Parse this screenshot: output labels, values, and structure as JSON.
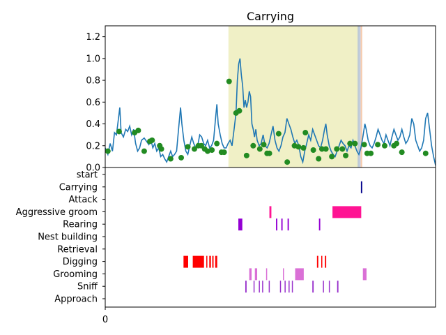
{
  "chart_data": [
    {
      "type": "line",
      "title": "Carrying",
      "xlabel": "",
      "ylabel": "",
      "ylim": [
        0,
        1.3
      ],
      "yticks": [
        "0.0",
        "0.2",
        "0.4",
        "0.6",
        "0.8",
        "1.0",
        "1.2"
      ],
      "x_range": [
        0,
        1000
      ],
      "series": [
        {
          "color": "#1f77b4",
          "points": [
            [
              0,
              0.18
            ],
            [
              8,
              0.12
            ],
            [
              15,
              0.22
            ],
            [
              22,
              0.15
            ],
            [
              28,
              0.32
            ],
            [
              34,
              0.3
            ],
            [
              40,
              0.45
            ],
            [
              44,
              0.55
            ],
            [
              48,
              0.32
            ],
            [
              55,
              0.28
            ],
            [
              62,
              0.35
            ],
            [
              68,
              0.33
            ],
            [
              74,
              0.38
            ],
            [
              80,
              0.3
            ],
            [
              86,
              0.35
            ],
            [
              92,
              0.22
            ],
            [
              98,
              0.15
            ],
            [
              104,
              0.18
            ],
            [
              110,
              0.25
            ],
            [
              118,
              0.27
            ],
            [
              125,
              0.24
            ],
            [
              132,
              0.21
            ],
            [
              138,
              0.26
            ],
            [
              144,
              0.18
            ],
            [
              150,
              0.22
            ],
            [
              156,
              0.15
            ],
            [
              162,
              0.18
            ],
            [
              168,
              0.1
            ],
            [
              174,
              0.12
            ],
            [
              180,
              0.08
            ],
            [
              186,
              0.05
            ],
            [
              192,
              0.1
            ],
            [
              198,
              0.15
            ],
            [
              204,
              0.1
            ],
            [
              210,
              0.12
            ],
            [
              216,
              0.15
            ],
            [
              222,
              0.35
            ],
            [
              228,
              0.55
            ],
            [
              232,
              0.4
            ],
            [
              238,
              0.25
            ],
            [
              244,
              0.15
            ],
            [
              250,
              0.12
            ],
            [
              256,
              0.2
            ],
            [
              262,
              0.28
            ],
            [
              268,
              0.22
            ],
            [
              274,
              0.18
            ],
            [
              280,
              0.2
            ],
            [
              286,
              0.3
            ],
            [
              292,
              0.28
            ],
            [
              298,
              0.22
            ],
            [
              304,
              0.2
            ],
            [
              310,
              0.25
            ],
            [
              316,
              0.18
            ],
            [
              322,
              0.2
            ],
            [
              328,
              0.25
            ],
            [
              334,
              0.45
            ],
            [
              338,
              0.58
            ],
            [
              342,
              0.4
            ],
            [
              348,
              0.3
            ],
            [
              354,
              0.22
            ],
            [
              360,
              0.18
            ],
            [
              366,
              0.18
            ],
            [
              372,
              0.22
            ],
            [
              378,
              0.25
            ],
            [
              384,
              0.2
            ],
            [
              390,
              0.35
            ],
            [
              396,
              0.5
            ],
            [
              400,
              0.8
            ],
            [
              404,
              0.95
            ],
            [
              408,
              1.0
            ],
            [
              412,
              0.85
            ],
            [
              416,
              0.75
            ],
            [
              420,
              0.55
            ],
            [
              424,
              0.62
            ],
            [
              428,
              0.55
            ],
            [
              432,
              0.6
            ],
            [
              436,
              0.7
            ],
            [
              440,
              0.65
            ],
            [
              444,
              0.4
            ],
            [
              448,
              0.35
            ],
            [
              452,
              0.28
            ],
            [
              456,
              0.35
            ],
            [
              460,
              0.25
            ],
            [
              466,
              0.2
            ],
            [
              472,
              0.22
            ],
            [
              478,
              0.3
            ],
            [
              484,
              0.2
            ],
            [
              490,
              0.18
            ],
            [
              496,
              0.22
            ],
            [
              502,
              0.3
            ],
            [
              508,
              0.38
            ],
            [
              514,
              0.25
            ],
            [
              520,
              0.18
            ],
            [
              526,
              0.15
            ],
            [
              532,
              0.2
            ],
            [
              538,
              0.28
            ],
            [
              544,
              0.32
            ],
            [
              550,
              0.45
            ],
            [
              556,
              0.4
            ],
            [
              562,
              0.35
            ],
            [
              568,
              0.28
            ],
            [
              574,
              0.22
            ],
            [
              580,
              0.25
            ],
            [
              586,
              0.2
            ],
            [
              592,
              0.1
            ],
            [
              598,
              0.05
            ],
            [
              604,
              0.15
            ],
            [
              610,
              0.22
            ],
            [
              616,
              0.3
            ],
            [
              622,
              0.25
            ],
            [
              628,
              0.35
            ],
            [
              634,
              0.3
            ],
            [
              640,
              0.25
            ],
            [
              646,
              0.2
            ],
            [
              652,
              0.18
            ],
            [
              658,
              0.25
            ],
            [
              664,
              0.35
            ],
            [
              668,
              0.4
            ],
            [
              672,
              0.3
            ],
            [
              678,
              0.2
            ],
            [
              684,
              0.15
            ],
            [
              690,
              0.12
            ],
            [
              696,
              0.1
            ],
            [
              702,
              0.15
            ],
            [
              708,
              0.2
            ],
            [
              714,
              0.25
            ],
            [
              720,
              0.22
            ],
            [
              726,
              0.2
            ],
            [
              732,
              0.15
            ],
            [
              738,
              0.2
            ],
            [
              744,
              0.18
            ],
            [
              750,
              0.25
            ],
            [
              756,
              0.2
            ],
            [
              762,
              0.15
            ],
            [
              768,
              0.12
            ],
            [
              774,
              0.18
            ],
            [
              780,
              0.28
            ],
            [
              786,
              0.4
            ],
            [
              790,
              0.35
            ],
            [
              796,
              0.25
            ],
            [
              802,
              0.2
            ],
            [
              808,
              0.18
            ],
            [
              814,
              0.22
            ],
            [
              820,
              0.28
            ],
            [
              826,
              0.35
            ],
            [
              832,
              0.3
            ],
            [
              838,
              0.25
            ],
            [
              844,
              0.22
            ],
            [
              850,
              0.3
            ],
            [
              856,
              0.25
            ],
            [
              862,
              0.2
            ],
            [
              868,
              0.28
            ],
            [
              874,
              0.35
            ],
            [
              880,
              0.3
            ],
            [
              886,
              0.25
            ],
            [
              892,
              0.28
            ],
            [
              898,
              0.35
            ],
            [
              904,
              0.28
            ],
            [
              910,
              0.22
            ],
            [
              916,
              0.25
            ],
            [
              922,
              0.3
            ],
            [
              928,
              0.45
            ],
            [
              934,
              0.4
            ],
            [
              940,
              0.25
            ],
            [
              946,
              0.2
            ],
            [
              952,
              0.15
            ],
            [
              958,
              0.18
            ],
            [
              964,
              0.25
            ],
            [
              970,
              0.45
            ],
            [
              976,
              0.5
            ],
            [
              982,
              0.35
            ],
            [
              988,
              0.2
            ],
            [
              994,
              0.1
            ],
            [
              1000,
              0.02
            ]
          ]
        },
        {
          "color": "#228b22",
          "marker": "circle",
          "points": [
            [
              8,
              0.15
            ],
            [
              42,
              0.33
            ],
            [
              89,
              0.32
            ],
            [
              100,
              0.34
            ],
            [
              118,
              0.15
            ],
            [
              135,
              0.24
            ],
            [
              142,
              0.25
            ],
            [
              165,
              0.2
            ],
            [
              170,
              0.17
            ],
            [
              198,
              0.08
            ],
            [
              230,
              0.09
            ],
            [
              250,
              0.19
            ],
            [
              270,
              0.17
            ],
            [
              282,
              0.2
            ],
            [
              291,
              0.2
            ],
            [
              301,
              0.17
            ],
            [
              310,
              0.15
            ],
            [
              323,
              0.16
            ],
            [
              338,
              0.22
            ],
            [
              352,
              0.14
            ],
            [
              360,
              0.14
            ],
            [
              375,
              0.79
            ],
            [
              396,
              0.5
            ],
            [
              406,
              0.52
            ],
            [
              428,
              0.11
            ],
            [
              448,
              0.2
            ],
            [
              468,
              0.17
            ],
            [
              480,
              0.21
            ],
            [
              490,
              0.13
            ],
            [
              497,
              0.13
            ],
            [
              525,
              0.31
            ],
            [
              551,
              0.05
            ],
            [
              573,
              0.2
            ],
            [
              585,
              0.19
            ],
            [
              600,
              0.18
            ],
            [
              606,
              0.32
            ],
            [
              630,
              0.16
            ],
            [
              646,
              0.08
            ],
            [
              656,
              0.17
            ],
            [
              668,
              0.17
            ],
            [
              686,
              0.1
            ],
            [
              701,
              0.17
            ],
            [
              718,
              0.17
            ],
            [
              728,
              0.11
            ],
            [
              741,
              0.22
            ],
            [
              756,
              0.22
            ],
            [
              784,
              0.21
            ],
            [
              793,
              0.13
            ],
            [
              804,
              0.13
            ],
            [
              825,
              0.21
            ],
            [
              846,
              0.2
            ],
            [
              874,
              0.2
            ],
            [
              882,
              0.22
            ],
            [
              898,
              0.14
            ],
            [
              970,
              0.13
            ]
          ]
        }
      ],
      "shaded_spans": [
        {
          "x0": 373,
          "x1": 770,
          "color": "#e6e6a0"
        },
        {
          "x0": 764,
          "x1": 773,
          "color": "#9fb3df"
        },
        {
          "x0": 773,
          "x1": 778,
          "color": "#f0a878"
        }
      ]
    },
    {
      "type": "event_raster",
      "xtick_labels": [
        "0"
      ],
      "categories": [
        "start",
        "Carrying",
        "Attack",
        "Aggressive groom",
        "Rearing",
        "Nest building",
        "Retrieval",
        "Digging",
        "Grooming",
        "Sniff",
        "Approach"
      ],
      "events": {
        "Carrying": {
          "color": "#00008b",
          "x": [
            [
              774,
              778
            ]
          ]
        },
        "Aggressive groom": {
          "color": "#ff1493",
          "x": [
            [
              497,
              503
            ],
            [
              688,
              775
            ]
          ]
        },
        "Rearing": {
          "color": "#9400d3",
          "x": [
            [
              403,
              415
            ],
            [
              517,
              521
            ],
            [
              533,
              537
            ],
            [
              552,
              556
            ],
            [
              647,
              651
            ]
          ]
        },
        "Digging": {
          "color": "#ff0000",
          "x": [
            [
              237,
              251
            ],
            [
              265,
              299
            ],
            [
              306,
              309
            ],
            [
              315,
              320
            ],
            [
              324,
              328
            ],
            [
              333,
              339
            ],
            [
              641,
              645
            ],
            [
              654,
              657
            ],
            [
              665,
              669
            ]
          ]
        },
        "Grooming": {
          "color": "#da70d6",
          "x": [
            [
              436,
              443
            ],
            [
              453,
              460
            ],
            [
              487,
              490
            ],
            [
              538,
              541
            ],
            [
              575,
              601
            ],
            [
              780,
              791
            ]
          ]
        },
        "Sniff": {
          "color": "#9932cc",
          "x": [
            [
              424,
              428
            ],
            [
              449,
              452
            ],
            [
              465,
              468
            ],
            [
              475,
              478
            ],
            [
              495,
              498
            ],
            [
              529,
              532
            ],
            [
              543,
              546
            ],
            [
              555,
              558
            ],
            [
              565,
              568
            ],
            [
              627,
              631
            ],
            [
              659,
              662
            ],
            [
              677,
              680
            ],
            [
              702,
              706
            ]
          ]
        },
        "Approach": {
          "color": "#9932cc",
          "x": []
        },
        "start": {
          "color": "#000000",
          "x": []
        },
        "Attack": {
          "color": "#000000",
          "x": []
        },
        "Nest building": {
          "color": "#000000",
          "x": []
        },
        "Retrieval": {
          "color": "#000000",
          "x": []
        }
      }
    }
  ]
}
